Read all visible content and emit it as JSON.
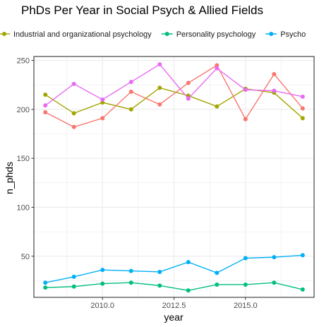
{
  "chart_data": {
    "type": "line",
    "title": "PhDs Per Year in Social Psych & Allied Fields",
    "xlabel": "year",
    "ylabel": "n_phds",
    "xlim": [
      2007.6,
      2017.4
    ],
    "ylim": [
      8,
      254
    ],
    "x_ticks": [
      2010.0,
      2012.5,
      2015.0
    ],
    "x_tick_labels": [
      "2010.0",
      "2012.5",
      "2015.0"
    ],
    "y_ticks": [
      50,
      100,
      150,
      200,
      250
    ],
    "y_tick_labels": [
      "50",
      "100",
      "150",
      "200",
      "250"
    ],
    "grid": true,
    "legend_position": "top",
    "series": [
      {
        "name": "Industrial and organizational psychology",
        "color": "#A3A500",
        "x": [
          2008,
          2009,
          2010,
          2011,
          2012,
          2013,
          2014,
          2015,
          2016,
          2017
        ],
        "values": [
          215,
          196,
          207,
          200,
          222,
          214,
          203,
          221,
          217,
          191
        ]
      },
      {
        "name": "Personality psychology",
        "color": "#00BF7D",
        "x": [
          2008,
          2009,
          2010,
          2011,
          2012,
          2013,
          2014,
          2015,
          2016,
          2017
        ],
        "values": [
          18,
          19,
          22,
          23,
          20,
          15,
          21,
          21,
          23,
          16
        ]
      },
      {
        "name": "Psycho",
        "color": "#00B0F6",
        "x": [
          2008,
          2009,
          2010,
          2011,
          2012,
          2013,
          2014,
          2015,
          2016,
          2017
        ],
        "values": [
          23,
          29,
          36,
          35,
          34,
          44,
          33,
          48,
          49,
          51
        ]
      },
      {
        "name": "",
        "color": "#F8766D",
        "x": [
          2008,
          2009,
          2010,
          2011,
          2012,
          2013,
          2014,
          2015,
          2016,
          2017
        ],
        "values": [
          197,
          182,
          191,
          218,
          205,
          227,
          245,
          190,
          236,
          201
        ]
      },
      {
        "name": "",
        "color": "#E76BF3",
        "x": [
          2008,
          2009,
          2010,
          2011,
          2012,
          2013,
          2014,
          2015,
          2016,
          2017
        ],
        "values": [
          204,
          226,
          210,
          228,
          246,
          211,
          242,
          220,
          219,
          213
        ]
      }
    ]
  }
}
